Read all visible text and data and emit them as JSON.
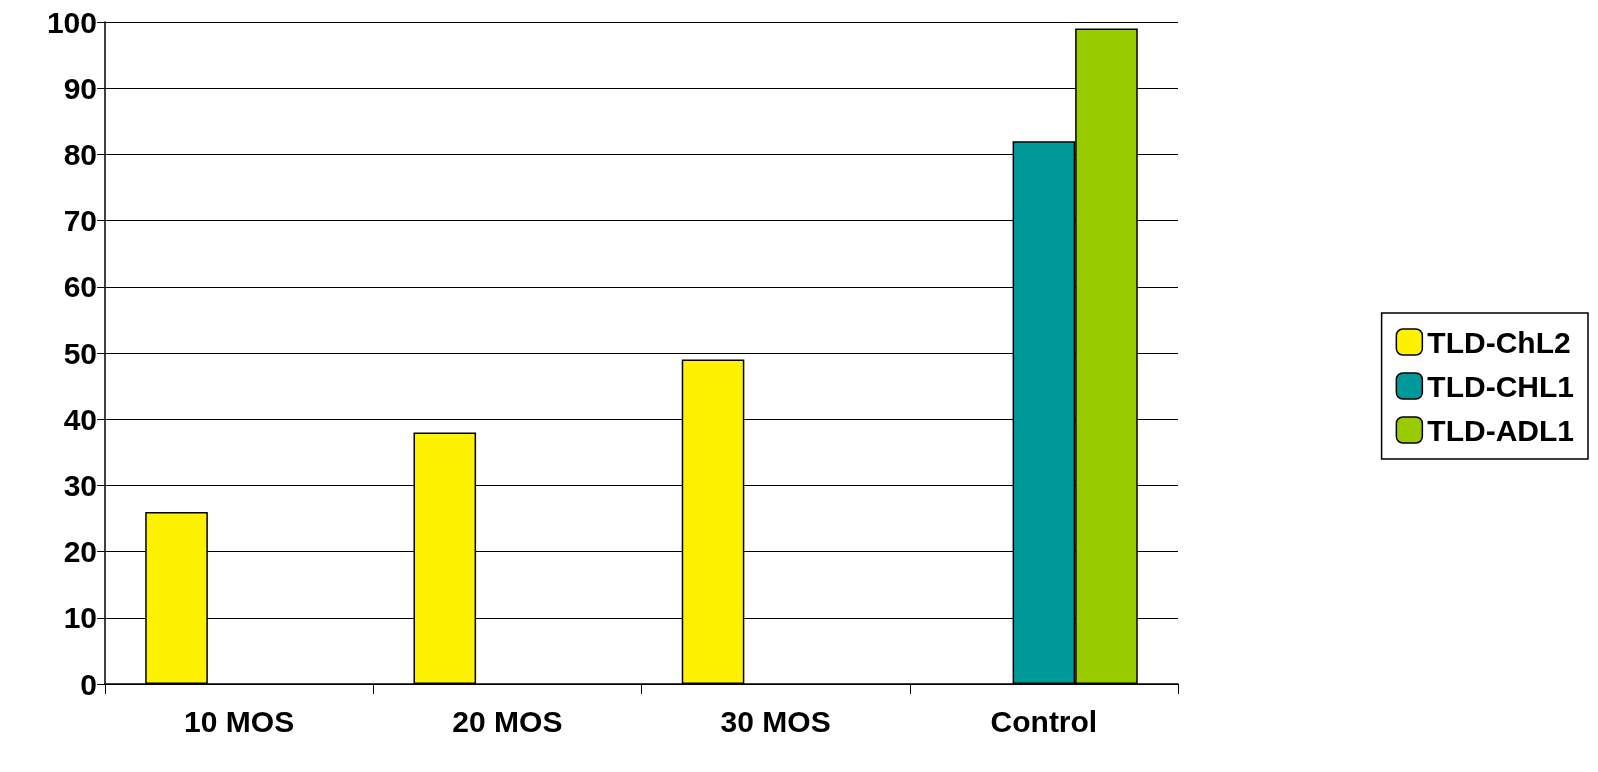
{
  "chart_data": {
    "type": "bar",
    "categories": [
      "10 MOS",
      "20 MOS",
      "30 MOS",
      "Control"
    ],
    "series": [
      {
        "name": "TLD-ChL2",
        "color": "#fff200",
        "values": [
          26,
          38,
          49,
          null
        ]
      },
      {
        "name": "TLD-CHL1",
        "color": "#009999",
        "values": [
          null,
          null,
          null,
          82
        ]
      },
      {
        "name": "TLD-ADL1",
        "color": "#99cc00",
        "values": [
          null,
          null,
          null,
          99
        ]
      }
    ],
    "ylim": [
      0,
      100
    ],
    "yticks": [
      0,
      10,
      20,
      30,
      40,
      50,
      60,
      70,
      80,
      90,
      100
    ],
    "grid": "y",
    "legend": "right"
  }
}
